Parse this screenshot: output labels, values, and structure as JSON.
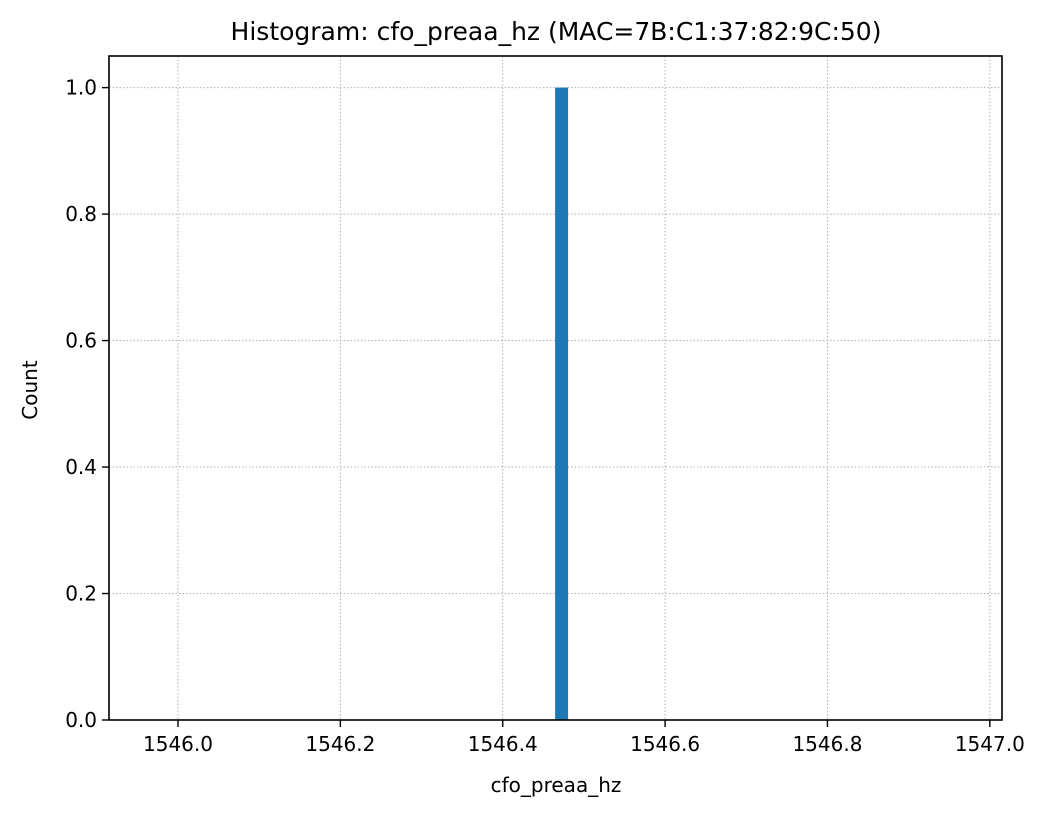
{
  "chart_data": {
    "type": "bar",
    "title": "Histogram: cfo_preaa_hz (MAC=7B:C1:37:82:9C:50)",
    "xlabel": "cfo_preaa_hz",
    "ylabel": "Count",
    "xlim": [
      1545.915,
      1547.015
    ],
    "ylim": [
      0,
      1.05
    ],
    "x_ticks": [
      1546.0,
      1546.2,
      1546.4,
      1546.6,
      1546.8,
      1547.0
    ],
    "x_tick_labels": [
      "1546.0",
      "1546.2",
      "1546.4",
      "1546.6",
      "1546.8",
      "1547.0"
    ],
    "y_ticks": [
      0.0,
      0.2,
      0.4,
      0.6,
      0.8,
      1.0
    ],
    "y_tick_labels": [
      "0.0",
      "0.2",
      "0.4",
      "0.6",
      "0.8",
      "1.0"
    ],
    "grid": true,
    "bars": [
      {
        "x_start": 1546.4645,
        "x_end": 1546.4805,
        "value": 1
      }
    ],
    "bar_color": "#1f77b4"
  }
}
